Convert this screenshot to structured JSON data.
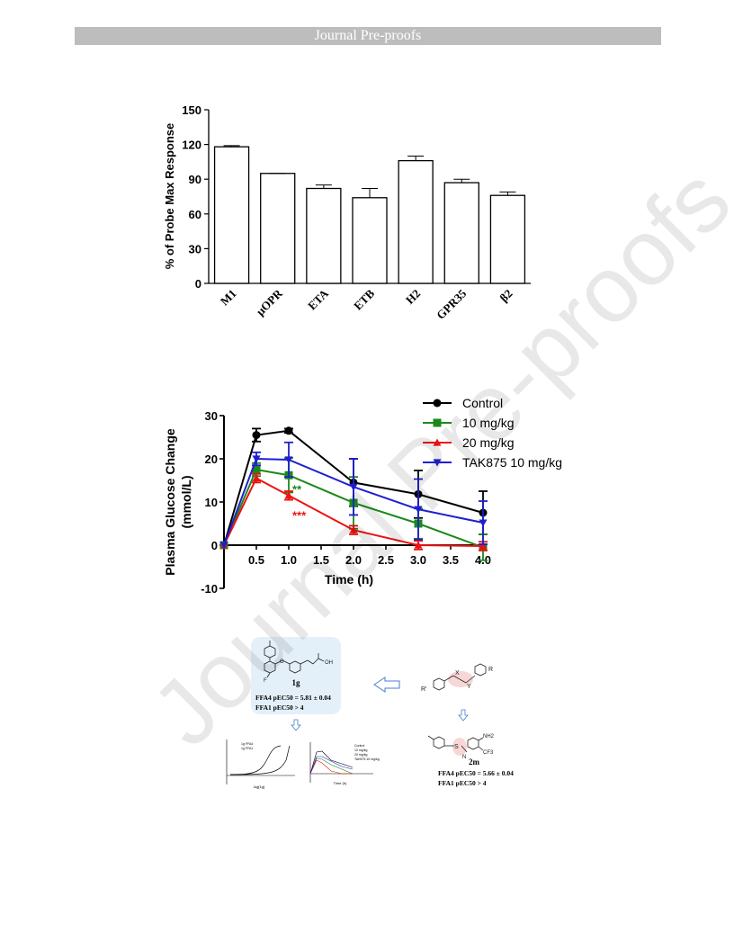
{
  "header": {
    "title": "Journal Pre-proofs"
  },
  "watermark": "Journal Pre-proofs",
  "figure1": {
    "chart_data": {
      "type": "bar",
      "ylabel": "% of Probe Max Response",
      "ylim": [
        0,
        150
      ],
      "yticks": [
        0,
        30,
        60,
        90,
        120,
        150
      ],
      "categories": [
        "M1",
        "μOPR",
        "ETA",
        "ETB",
        "H2",
        "GPR35",
        "β2"
      ],
      "values": [
        118,
        95,
        82,
        74,
        106,
        87,
        76
      ],
      "errors": [
        1,
        0,
        3,
        8,
        4,
        3,
        3
      ]
    }
  },
  "figure2": {
    "chart_data": {
      "type": "line",
      "xlabel": "Time (h)",
      "ylabel": "Plasma Glucose Change (mmol/L)",
      "ylim": [
        -10,
        30
      ],
      "xlim": [
        0,
        4
      ],
      "yticks": [
        -10,
        0,
        10,
        20,
        30
      ],
      "xticks": [
        "0.5",
        "1.0",
        "1.5",
        "2.0",
        "2.5",
        "3.0",
        "3.5",
        "4.0"
      ],
      "x": [
        0,
        0.5,
        1.0,
        2.0,
        3.0,
        4.0
      ],
      "series": [
        {
          "name": "Control",
          "color": "#000000",
          "marker": "circle",
          "values": [
            0,
            25.5,
            26.5,
            14.5,
            11.8,
            7.5
          ],
          "errors": [
            0,
            1.5,
            0.5,
            5.5,
            5.5,
            5
          ]
        },
        {
          "name": "10 mg/kg",
          "color": "#1a8a1a",
          "marker": "square",
          "values": [
            0,
            17.5,
            16.2,
            9.8,
            5,
            -0.5
          ],
          "errors": [
            0,
            1.5,
            4,
            6,
            3.5,
            3
          ]
        },
        {
          "name": "20 mg/kg",
          "color": "#ee1111",
          "marker": "triangle-up",
          "values": [
            0,
            15.5,
            11.5,
            3.5,
            0,
            -0.2
          ],
          "errors": [
            0,
            1,
            1,
            1,
            1,
            1
          ]
        },
        {
          "name": "TAK875 10 mg/kg",
          "color": "#1f1fd0",
          "marker": "triangle-down",
          "values": [
            0,
            20,
            19.8,
            13.5,
            8.3,
            5.2
          ],
          "errors": [
            0,
            1.5,
            4,
            6.5,
            7,
            5
          ]
        }
      ],
      "annotations": [
        {
          "text": "**",
          "x": 1.0,
          "y": 13,
          "color": "#1a8a1a"
        },
        {
          "text": "***",
          "x": 1.0,
          "y": 7,
          "color": "#ee1111"
        }
      ]
    }
  },
  "figure3": {
    "compound_1g": {
      "label": "1g",
      "line1": "FFA4 pEC50 = 5.81 ± 0.04",
      "line2": "FFA1 pEC50 > 4",
      "oh": "OH"
    },
    "compound_2m": {
      "label": "2m",
      "line1": "FFA4 pEC50 = 5.66 ± 0.04",
      "line2": "FFA1 pEC50 > 4",
      "nh2": "NH2",
      "cf3": "CF3"
    },
    "generic": {
      "r1": "R'",
      "r2": "R",
      "x": "X",
      "y": "Y"
    },
    "mini_dose": {
      "xlabel": "log[1g]",
      "legend": [
        "1g FFA4",
        "1g FFA1"
      ]
    },
    "mini_time": {
      "xlabel": "Time (h)",
      "legend": [
        "Control",
        "10 mg/kg",
        "20 mg/kg",
        "TAK875 10 mg/kg"
      ]
    }
  }
}
